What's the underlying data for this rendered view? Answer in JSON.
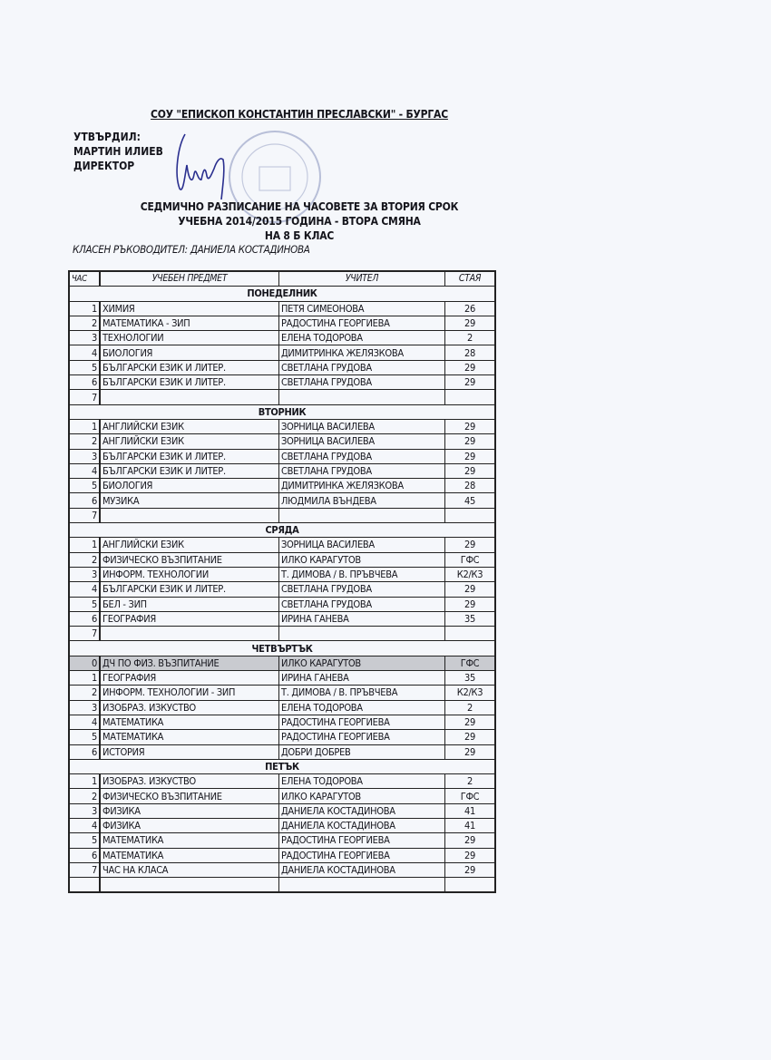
{
  "school": "СОУ \"ЕПИСКОП КОНСТАНТИН ПРЕСЛАВСКИ\" - БУРГАС",
  "approval": {
    "label": "УТВЪРДИЛ:",
    "name": "МАРТИН ИЛИЕВ",
    "position": "ДИРЕКТОР"
  },
  "titles": [
    "СЕДМИЧНО РАЗПИСАНИЕ НА ЧАСОВЕТЕ ЗА ВТОРИЯ СРОК",
    "УЧЕБНА 2014/2015 ГОДИНА - ВТОРА СМЯНА",
    "НА 8 Б КЛАС"
  ],
  "class_teacher": "КЛАСЕН РЪКОВОДИТЕЛ: ДАНИЕЛА КОСТАДИНОВА",
  "table": {
    "headers": [
      "ЧАС",
      "УЧЕБЕН ПРЕДМЕТ",
      "УЧИТЕЛ",
      "СТАЯ"
    ],
    "days": [
      {
        "name": "ПОНЕДЕЛНИК",
        "rows": [
          [
            "1",
            "ХИМИЯ",
            "ПЕТЯ СИМЕОНОВА",
            "26"
          ],
          [
            "2",
            "МАТЕМАТИКА - ЗИП",
            "РАДОСТИНА ГЕОРГИЕВА",
            "29"
          ],
          [
            "3",
            "ТЕХНОЛОГИИ",
            "ЕЛЕНА ТОДОРОВА",
            "2"
          ],
          [
            "4",
            "БИОЛОГИЯ",
            "ДИМИТРИНКА ЖЕЛЯЗКОВА",
            "28"
          ],
          [
            "5",
            "БЪЛГАРСКИ ЕЗИК И ЛИТЕР.",
            "СВЕТЛАНА ГРУДОВА",
            "29"
          ],
          [
            "6",
            "БЪЛГАРСКИ ЕЗИК И ЛИТЕР.",
            "СВЕТЛАНА ГРУДОВА",
            "29"
          ],
          [
            "7",
            "",
            "",
            ""
          ]
        ]
      },
      {
        "name": "ВТОРНИК",
        "rows": [
          [
            "1",
            "АНГЛИЙСКИ ЕЗИК",
            "ЗОРНИЦА ВАСИЛЕВА",
            "29"
          ],
          [
            "2",
            "АНГЛИЙСКИ ЕЗИК",
            "ЗОРНИЦА ВАСИЛЕВА",
            "29"
          ],
          [
            "3",
            "БЪЛГАРСКИ ЕЗИК И ЛИТЕР.",
            "СВЕТЛАНА ГРУДОВА",
            "29"
          ],
          [
            "4",
            "БЪЛГАРСКИ ЕЗИК И ЛИТЕР.",
            "СВЕТЛАНА ГРУДОВА",
            "29"
          ],
          [
            "5",
            "БИОЛОГИЯ",
            "ДИМИТРИНКА ЖЕЛЯЗКОВА",
            "28"
          ],
          [
            "6",
            "МУЗИКА",
            "ЛЮДМИЛА ВЪНДЕВА",
            "45"
          ],
          [
            "7",
            "",
            "",
            ""
          ]
        ]
      },
      {
        "name": "СРЯДА",
        "rows": [
          [
            "1",
            "АНГЛИЙСКИ ЕЗИК",
            "ЗОРНИЦА ВАСИЛЕВА",
            "29"
          ],
          [
            "2",
            "ФИЗИЧЕСКО ВЪЗПИТАНИЕ",
            "ИЛКО КАРАГУТОВ",
            "ГФС"
          ],
          [
            "3",
            "ИНФОРМ. ТЕХНОЛОГИИ",
            "Т. ДИМОВА / В. ПРЪВЧЕВА",
            "К2/К3"
          ],
          [
            "4",
            "БЪЛГАРСКИ ЕЗИК И ЛИТЕР.",
            "СВЕТЛАНА ГРУДОВА",
            "29"
          ],
          [
            "5",
            "БЕЛ - ЗИП",
            "СВЕТЛАНА ГРУДОВА",
            "29"
          ],
          [
            "6",
            "ГЕОГРАФИЯ",
            "ИРИНА ГАНЕВА",
            "35"
          ],
          [
            "7",
            "",
            "",
            ""
          ]
        ]
      },
      {
        "name": "ЧЕТВЪРТЪК",
        "rows": [
          [
            "0",
            "ДЧ ПО ФИЗ. ВЪЗПИТАНИЕ",
            "ИЛКО КАРАГУТОВ",
            "ГФС"
          ],
          [
            "1",
            "ГЕОГРАФИЯ",
            "ИРИНА ГАНЕВА",
            "35"
          ],
          [
            "2",
            "ИНФОРМ. ТЕХНОЛОГИИ - ЗИП",
            "Т. ДИМОВА / В. ПРЪВЧЕВА",
            "К2/К3"
          ],
          [
            "3",
            "ИЗОБРАЗ. ИЗКУСТВО",
            "ЕЛЕНА ТОДОРОВА",
            "2"
          ],
          [
            "4",
            "МАТЕМАТИКА",
            "РАДОСТИНА ГЕОРГИЕВА",
            "29"
          ],
          [
            "5",
            "МАТЕМАТИКА",
            "РАДОСТИНА ГЕОРГИЕВА",
            "29"
          ],
          [
            "6",
            "ИСТОРИЯ",
            "ДОБРИ ДОБРЕВ",
            "29"
          ]
        ]
      },
      {
        "name": "ПЕТЪК",
        "rows": [
          [
            "1",
            "ИЗОБРАЗ. ИЗКУСТВО",
            "ЕЛЕНА ТОДОРОВА",
            "2"
          ],
          [
            "2",
            "ФИЗИЧЕСКО ВЪЗПИТАНИЕ",
            "ИЛКО КАРАГУТОВ",
            "ГФС"
          ],
          [
            "3",
            "ФИЗИКА",
            "ДАНИЕЛА КОСТАДИНОВА",
            "41"
          ],
          [
            "4",
            "ФИЗИКА",
            "ДАНИЕЛА КОСТАДИНОВА",
            "41"
          ],
          [
            "5",
            "МАТЕМАТИКА",
            "РАДОСТИНА ГЕОРГИЕВА",
            "29"
          ],
          [
            "6",
            "МАТЕМАТИКА",
            "РАДОСТИНА ГЕОРГИЕВА",
            "29"
          ],
          [
            "7",
            "ЧАС НА КЛАСА",
            "ДАНИЕЛА КОСТАДИНОВА",
            "29"
          ],
          [
            "",
            "",
            "",
            ""
          ]
        ]
      }
    ]
  },
  "colors": {
    "paper": "#f5f7fb",
    "ink": "#15151c",
    "signature": "#2a2f8f",
    "stamp": "#b8bfd8",
    "shaded_row": "#c9cbd0"
  }
}
